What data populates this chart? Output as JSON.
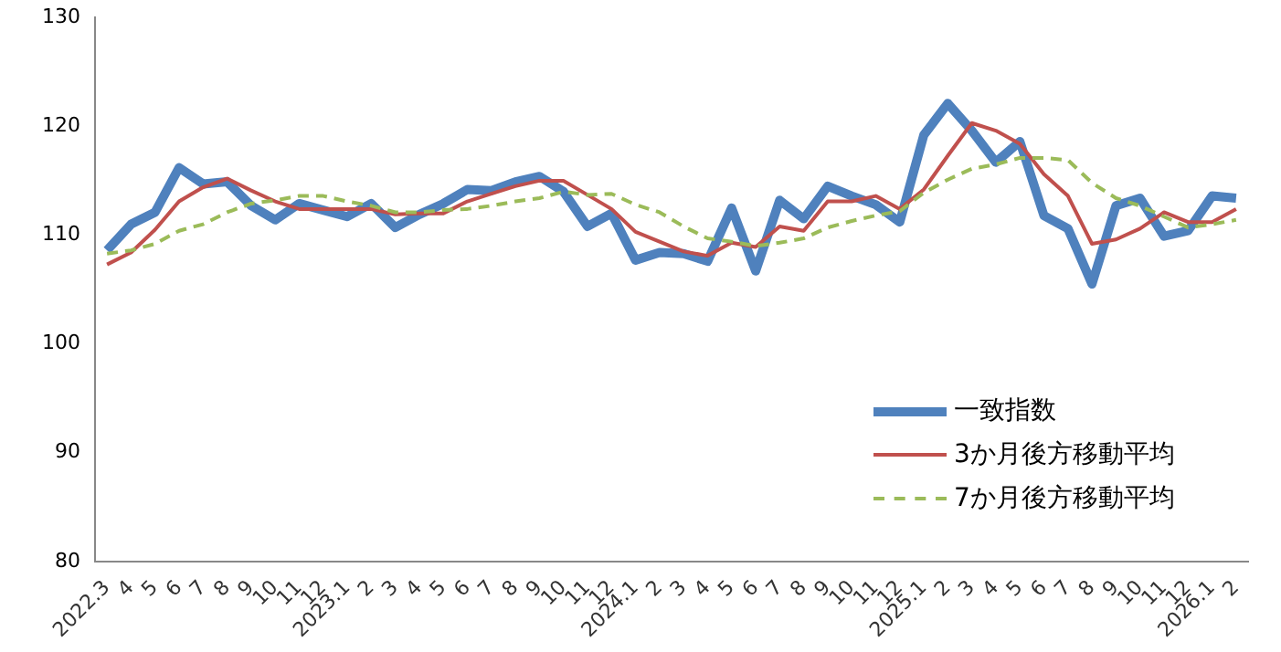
{
  "chart_data": {
    "type": "line",
    "categories": [
      "2022.3",
      "4",
      "5",
      "6",
      "7",
      "8",
      "9",
      "10",
      "11",
      "12",
      "2023.1",
      "2",
      "3",
      "4",
      "5",
      "6",
      "7",
      "8",
      "9",
      "10",
      "11",
      "12",
      "2024.1",
      "2",
      "3",
      "4",
      "5",
      "6",
      "7",
      "8",
      "9",
      "10",
      "11",
      "12",
      "2025.1",
      "2",
      "3",
      "4",
      "5",
      "6",
      "7",
      "8",
      "9",
      "10",
      "11",
      "12",
      "2026.1",
      "2"
    ],
    "series": [
      {
        "name": "一致指数",
        "color": "#4f81bd",
        "line_style": "solid",
        "values": [
          108.6,
          111,
          112.1,
          116.2,
          114.7,
          114.9,
          112.7,
          111.4,
          112.9,
          112.3,
          111.7,
          112.9,
          110.7,
          111.9,
          112.9,
          114.2,
          114.1,
          114.9,
          115.4,
          114,
          110.8,
          112,
          107.7,
          108.4,
          108.3,
          107.6,
          112.5,
          106.7,
          113.2,
          111.5,
          114.5,
          113.6,
          112.8,
          111.2,
          119.2,
          122.1,
          119.6,
          116.7,
          118.6,
          111.8,
          110.6,
          105.5,
          112.7,
          113.4,
          109.9,
          110.4,
          113.6,
          113.4
        ]
      },
      {
        "name": "3か月後方移動平均",
        "color": "#c0504d",
        "line_style": "solid",
        "values": [
          107.3,
          108.4,
          110.5,
          113.1,
          114.4,
          115.2,
          114.1,
          113.1,
          112.4,
          112.4,
          112.4,
          112.4,
          111.9,
          112,
          112,
          113.1,
          113.8,
          114.5,
          115,
          115,
          113.7,
          112.4,
          110.3,
          109.4,
          108.5,
          108.1,
          109.3,
          108.9,
          110.8,
          110.4,
          113.1,
          113.1,
          113.6,
          112.4,
          114.2,
          117.3,
          120.3,
          119.6,
          118.4,
          115.6,
          113.6,
          109.2,
          109.6,
          110.6,
          112.1,
          111.2,
          111.2,
          112.4
        ]
      },
      {
        "name": "7か月後方移動平均",
        "color": "#9bbb59",
        "line_style": "dashed",
        "values": [
          108.3,
          108.6,
          109.2,
          110.4,
          111,
          112.1,
          112.9,
          113.2,
          113.6,
          113.6,
          113.1,
          112.7,
          112.1,
          112.1,
          112.3,
          112.4,
          112.7,
          113.1,
          113.4,
          114,
          113.7,
          113.8,
          112.8,
          112.1,
          110.8,
          109.7,
          109.4,
          109,
          109.3,
          109.7,
          110.7,
          111.3,
          111.8,
          112.2,
          113.9,
          115.1,
          116.1,
          116.5,
          117.1,
          117.1,
          116.9,
          114.8,
          113.4,
          112.7,
          111.7,
          110.7,
          111,
          111.4
        ]
      }
    ],
    "ylim": [
      80,
      130
    ],
    "yticks": [
      80,
      90,
      100,
      110,
      120,
      130
    ],
    "grid": false,
    "legend": "bottom right",
    "marker": "none"
  }
}
